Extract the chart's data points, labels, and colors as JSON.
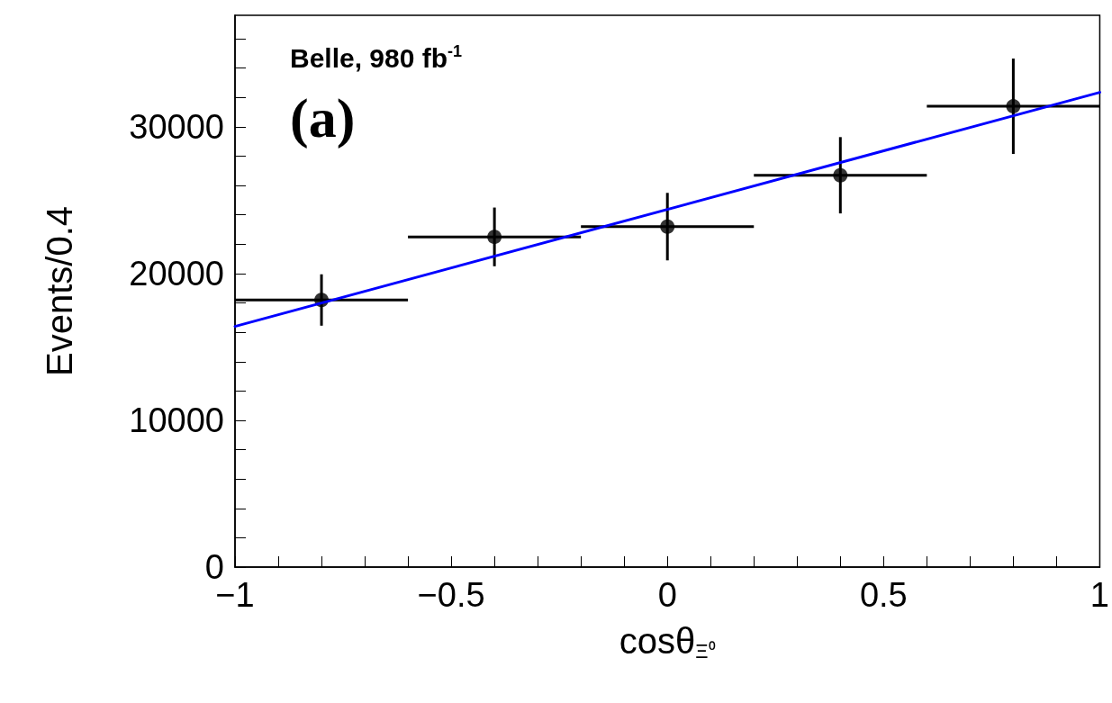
{
  "chart_data": {
    "type": "scatter",
    "xlabel": "cosθ$_{Ξ⁰}$",
    "ylabel": "Events/0.4",
    "annotations": [
      "Belle, 980 fb$^{-1}$",
      "(a)"
    ],
    "xlim": [
      -1,
      1
    ],
    "ylim": [
      0,
      37600
    ],
    "xticks": [
      {
        "value": -1,
        "label": "−1"
      },
      {
        "value": -0.9,
        "label": null
      },
      {
        "value": -0.8,
        "label": null
      },
      {
        "value": -0.7,
        "label": null
      },
      {
        "value": -0.6,
        "label": null
      },
      {
        "value": -0.5,
        "label": "−0.5"
      },
      {
        "value": -0.4,
        "label": null
      },
      {
        "value": -0.3,
        "label": null
      },
      {
        "value": -0.2,
        "label": null
      },
      {
        "value": -0.1,
        "label": null
      },
      0,
      {
        "value": 0.1,
        "label": null
      },
      {
        "value": 0.2,
        "label": null
      },
      {
        "value": 0.3,
        "label": null
      },
      {
        "value": 0.4,
        "label": null
      },
      0.5,
      {
        "value": 0.6,
        "label": null
      },
      {
        "value": 0.7,
        "label": null
      },
      {
        "value": 0.8,
        "label": null
      },
      {
        "value": 0.9,
        "label": null
      },
      1
    ],
    "yticks": [
      0,
      {
        "value": 2000,
        "label": null
      },
      {
        "value": 4000,
        "label": null
      },
      {
        "value": 6000,
        "label": null
      },
      {
        "value": 8000,
        "label": null
      },
      10000,
      {
        "value": 12000,
        "label": null
      },
      {
        "value": 14000,
        "label": null
      },
      {
        "value": 16000,
        "label": null
      },
      {
        "value": 18000,
        "label": null
      },
      20000,
      {
        "value": 22000,
        "label": null
      },
      {
        "value": 24000,
        "label": null
      },
      {
        "value": 26000,
        "label": null
      },
      {
        "value": 28000,
        "label": null
      },
      30000,
      {
        "value": 32000,
        "label": null
      },
      {
        "value": 34000,
        "label": null
      },
      {
        "value": 36000,
        "label": null
      }
    ],
    "series": [
      {
        "color": "#000000",
        "marker": "circle",
        "x": [
          -0.8,
          -0.4,
          0,
          0.4,
          0.8
        ],
        "values": [
          18200,
          22500,
          23200,
          26700,
          31400
        ],
        "errors": [
          1750,
          2000,
          2300,
          2600,
          3250
        ],
        "xerrors": [
          0.2,
          0.2,
          0.2,
          0.2,
          0.2
        ]
      },
      {
        "type": "line",
        "color": "#0000ff",
        "marker": "none",
        "line_style": "solid",
        "x": [
          -1,
          1
        ],
        "values": [
          16400,
          32350
        ]
      }
    ]
  }
}
